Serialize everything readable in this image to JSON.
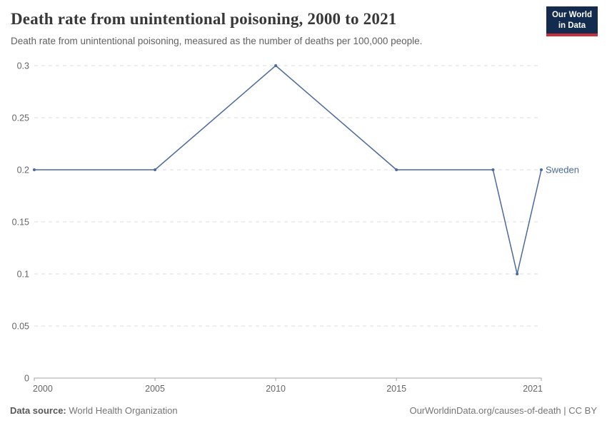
{
  "header": {
    "title": "Death rate from unintentional poisoning, 2000 to 2021",
    "subtitle": "Death rate from unintentional poisoning, measured as the number of deaths per 100,000 people."
  },
  "logo": {
    "line1": "Our World",
    "line2": "in Data",
    "bg_color": "#122b4e",
    "accent_color": "#c7303c"
  },
  "footer": {
    "source_label": "Data source:",
    "source_value": "World Health Organization",
    "credit": "OurWorldinData.org/causes-of-death | CC BY"
  },
  "chart_data": {
    "type": "line",
    "title": "Death rate from unintentional poisoning, 2000 to 2021",
    "xlabel": "",
    "ylabel": "",
    "xlim": [
      2000,
      2021
    ],
    "ylim": [
      0,
      0.3
    ],
    "x_ticks": [
      2000,
      2005,
      2010,
      2015,
      2021
    ],
    "y_ticks": [
      0,
      0.05,
      0.1,
      0.15,
      0.2,
      0.25,
      0.3
    ],
    "grid": "horizontal-dashed",
    "grid_color": "#dddddd",
    "axis_color": "#a5a5a5",
    "tick_label_color": "#666666",
    "legend_position": "end-of-line-label",
    "series": [
      {
        "name": "Sweden",
        "color": "#4c6a9c",
        "x": [
          2000,
          2005,
          2010,
          2015,
          2019,
          2020,
          2021
        ],
        "values": [
          0.2,
          0.2,
          0.3,
          0.2,
          0.2,
          0.1,
          0.2
        ]
      }
    ]
  }
}
